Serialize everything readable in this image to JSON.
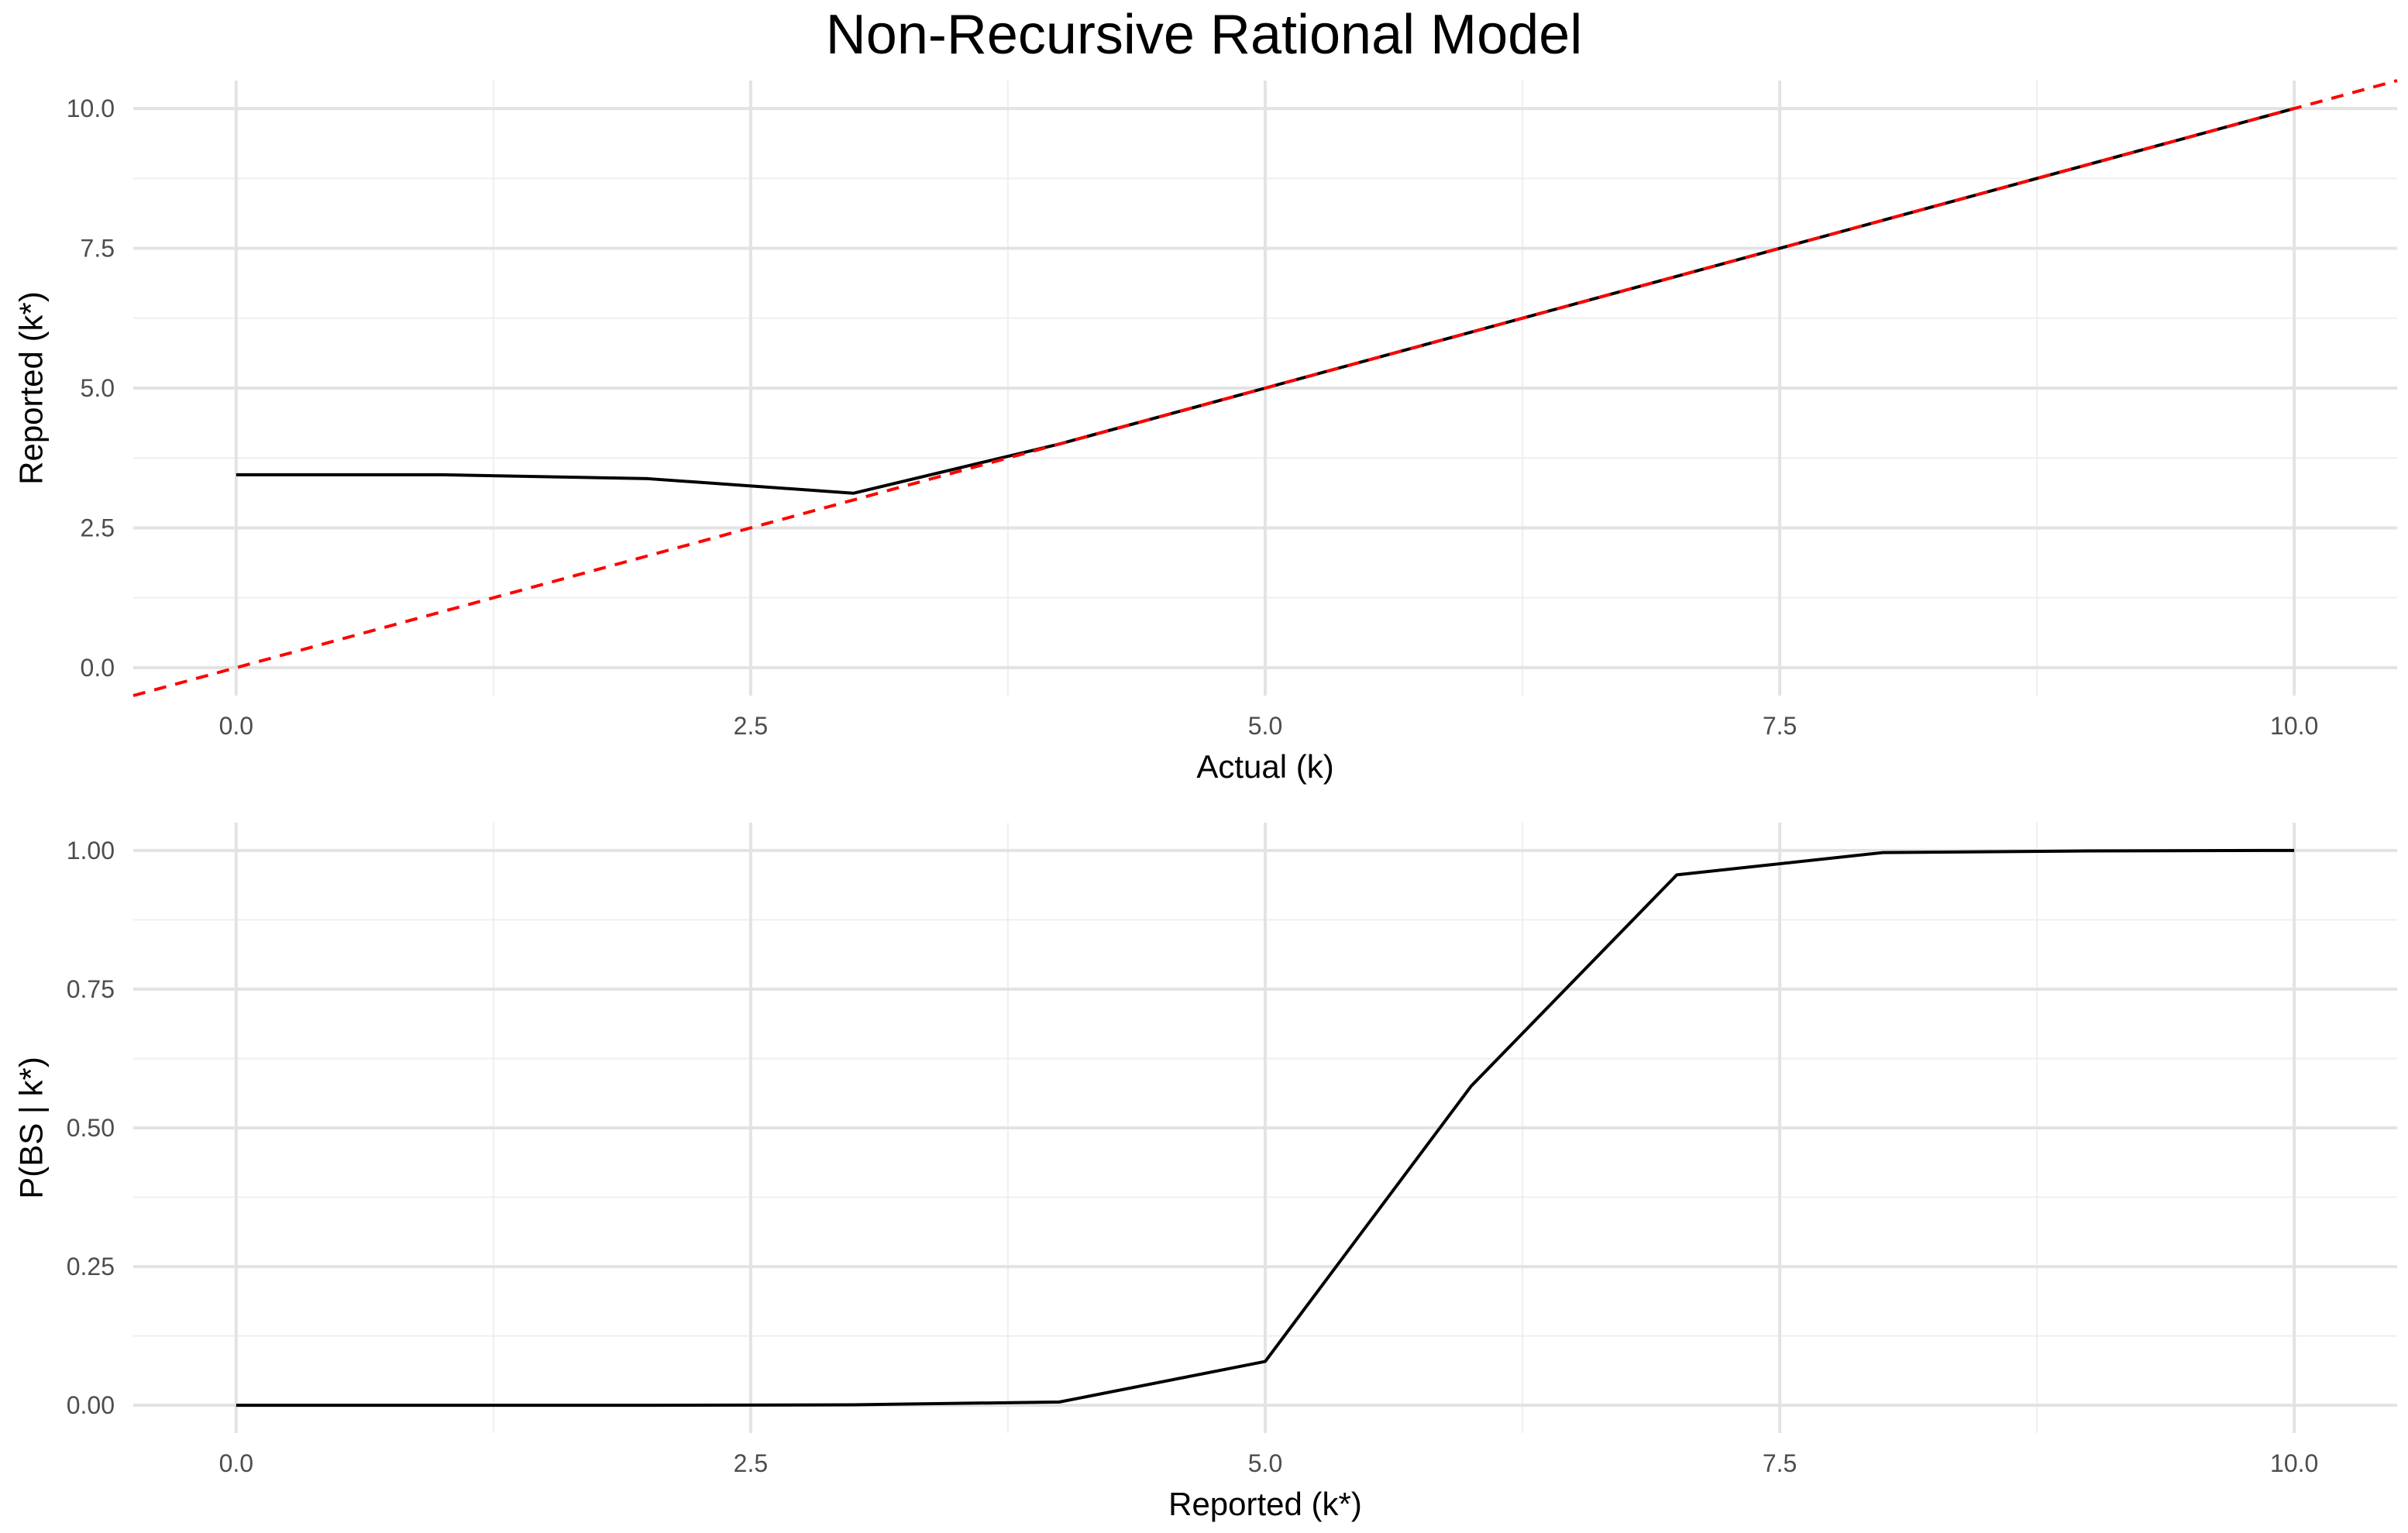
{
  "title": "Non-Recursive Rational Model",
  "colors": {
    "background": "#ffffff",
    "grid_major": "#e3e3e3",
    "grid_minor": "#efefef",
    "line": "#000000",
    "reference": "#ff0000",
    "tick_text": "#4d4d4d"
  },
  "chart_data": [
    {
      "type": "line",
      "xlabel": "Actual (k)",
      "ylabel": "Reported (k*)",
      "xlim": [
        -0.5,
        10.5
      ],
      "ylim": [
        -0.5,
        10.5
      ],
      "xticks": [
        0,
        2.5,
        5,
        7.5,
        10
      ],
      "yticks": [
        0,
        2.5,
        5,
        7.5,
        10
      ],
      "xtick_labels": [
        "0.0",
        "2.5",
        "5.0",
        "7.5",
        "10.0"
      ],
      "ytick_labels": [
        "0.0",
        "2.5",
        "5.0",
        "7.5",
        "10.0"
      ],
      "grid": true,
      "series": [
        {
          "style": "solid",
          "color": "#000000",
          "x": [
            0,
            1,
            2,
            3,
            4,
            5,
            6,
            7,
            8,
            9,
            10
          ],
          "y": [
            3.45,
            3.45,
            3.38,
            3.12,
            4.0,
            5.0,
            6.0,
            7.0,
            8.0,
            9.0,
            10.0
          ]
        },
        {
          "style": "dashed",
          "color": "#ff0000",
          "x": [
            -0.5,
            10.5
          ],
          "y": [
            -0.5,
            10.5
          ]
        }
      ]
    },
    {
      "type": "line",
      "xlabel": "Reported (k*)",
      "ylabel": "P(BS | k*)",
      "xlim": [
        -0.5,
        10.5
      ],
      "ylim": [
        -0.05,
        1.05
      ],
      "xticks": [
        0,
        2.5,
        5,
        7.5,
        10
      ],
      "yticks": [
        0,
        0.25,
        0.5,
        0.75,
        1.0
      ],
      "xtick_labels": [
        "0.0",
        "2.5",
        "5.0",
        "7.5",
        "10.0"
      ],
      "ytick_labels": [
        "0.00",
        "0.25",
        "0.50",
        "0.75",
        "1.00"
      ],
      "grid": true,
      "series": [
        {
          "style": "solid",
          "color": "#000000",
          "x": [
            0,
            1,
            2,
            3,
            4,
            5,
            6,
            7,
            8,
            9,
            10
          ],
          "y": [
            0.0,
            0.0,
            0.0,
            0.001,
            0.006,
            0.079,
            0.575,
            0.956,
            0.996,
            0.999,
            1.0
          ]
        }
      ]
    }
  ]
}
